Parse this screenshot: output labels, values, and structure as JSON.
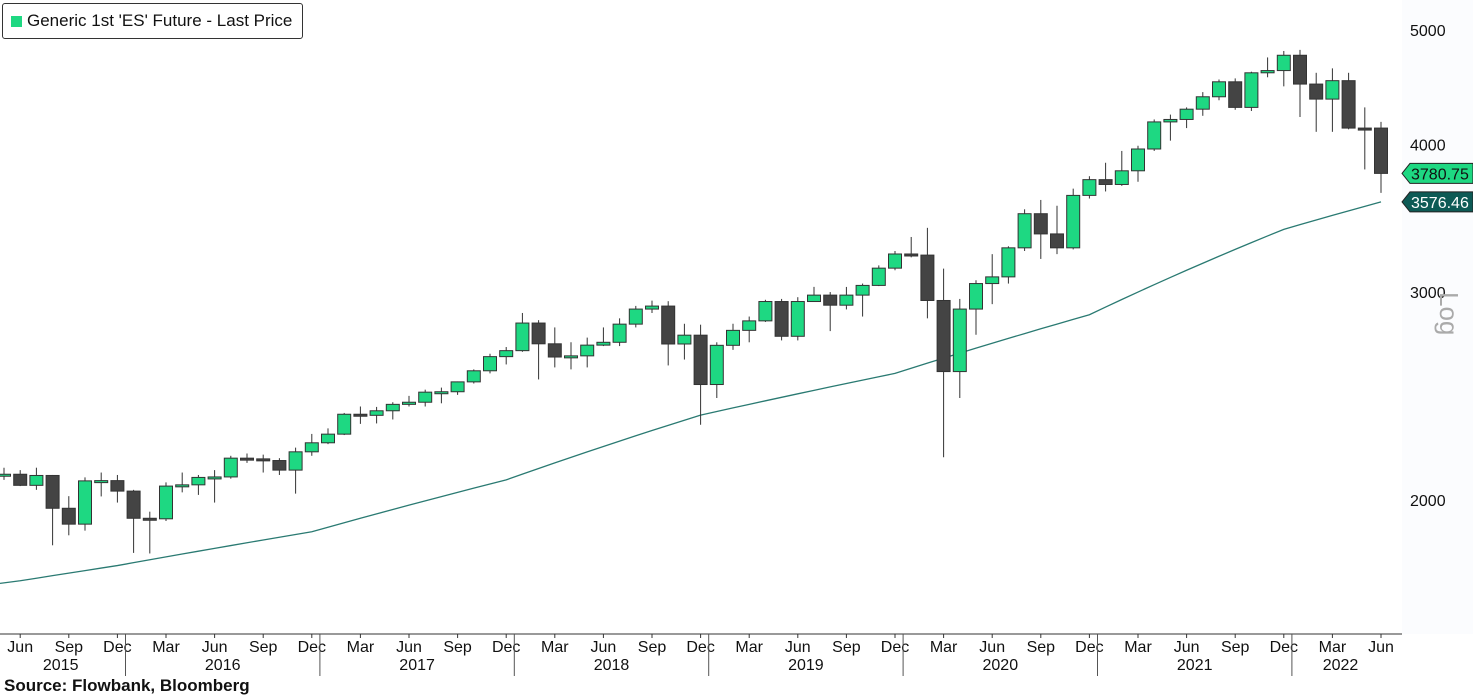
{
  "legend": {
    "label": "Generic 1st 'ES' Future - Last Price",
    "color": "#1ed882"
  },
  "source": "Source: Flowbank, Bloomberg",
  "chart_data": {
    "type": "candlestick",
    "title": "Generic 1st 'ES' Future - Last Price",
    "y_scale": "log",
    "y_scale_label": "Log",
    "ylim": [
      1600,
      5300
    ],
    "y_ticks": [
      "2000",
      "3000",
      "4000",
      "5000"
    ],
    "start_month": "2015-05",
    "up_color": "#1ed882",
    "down_color": "#444444",
    "ma_color": "#2a7a72",
    "last_price_label": "3780.75",
    "ma_last_label": "3576.46",
    "x_month_labels": [
      "Jun",
      "Sep",
      "Dec",
      "Mar",
      "Jun",
      "Sep",
      "Dec",
      "Mar",
      "Jun",
      "Sep",
      "Dec",
      "Mar",
      "Jun",
      "Sep",
      "Dec",
      "Mar",
      "Jun",
      "Sep",
      "Dec",
      "Mar",
      "Jun",
      "Sep",
      "Dec",
      "Mar",
      "Jun",
      "Sep",
      "Dec",
      "Mar",
      "Jun"
    ],
    "x_year_labels": [
      "2015",
      "2016",
      "2017",
      "2018",
      "2019",
      "2020",
      "2021",
      "2022"
    ],
    "ohlc": [
      [
        2100,
        2130,
        2080,
        2103
      ],
      [
        2103,
        2120,
        2055,
        2058
      ],
      [
        2058,
        2130,
        2040,
        2098
      ],
      [
        2098,
        2100,
        1831,
        1968
      ],
      [
        1968,
        2015,
        1867,
        1908
      ],
      [
        1908,
        2090,
        1884,
        2076
      ],
      [
        2076,
        2110,
        2014,
        2077
      ],
      [
        2077,
        2100,
        1990,
        2035
      ],
      [
        2035,
        2040,
        1804,
        1930
      ],
      [
        1930,
        1955,
        1802,
        1928
      ],
      [
        1928,
        2070,
        1920,
        2055
      ],
      [
        2055,
        2110,
        2030,
        2060
      ],
      [
        2060,
        2100,
        2020,
        2090
      ],
      [
        2090,
        2120,
        1990,
        2092
      ],
      [
        2092,
        2180,
        2085,
        2170
      ],
      [
        2170,
        2190,
        2150,
        2167
      ],
      [
        2167,
        2185,
        2110,
        2160
      ],
      [
        2160,
        2170,
        2100,
        2120
      ],
      [
        2120,
        2215,
        2025,
        2197
      ],
      [
        2197,
        2275,
        2180,
        2236
      ],
      [
        2236,
        2300,
        2230,
        2274
      ],
      [
        2274,
        2370,
        2270,
        2364
      ],
      [
        2364,
        2400,
        2320,
        2359
      ],
      [
        2359,
        2398,
        2322,
        2380
      ],
      [
        2380,
        2420,
        2340,
        2410
      ],
      [
        2410,
        2450,
        2400,
        2420
      ],
      [
        2420,
        2480,
        2400,
        2468
      ],
      [
        2468,
        2490,
        2415,
        2470
      ],
      [
        2470,
        2520,
        2455,
        2518
      ],
      [
        2518,
        2580,
        2510,
        2573
      ],
      [
        2573,
        2660,
        2560,
        2645
      ],
      [
        2645,
        2695,
        2605,
        2676
      ],
      [
        2676,
        2880,
        2670,
        2824
      ],
      [
        2824,
        2840,
        2530,
        2712
      ],
      [
        2712,
        2800,
        2590,
        2643
      ],
      [
        2643,
        2720,
        2580,
        2649
      ],
      [
        2649,
        2745,
        2590,
        2705
      ],
      [
        2705,
        2800,
        2700,
        2720
      ],
      [
        2720,
        2850,
        2700,
        2818
      ],
      [
        2818,
        2920,
        2800,
        2902
      ],
      [
        2902,
        2950,
        2880,
        2919
      ],
      [
        2919,
        2947,
        2600,
        2711
      ],
      [
        2711,
        2820,
        2630,
        2758
      ],
      [
        2758,
        2815,
        2316,
        2505
      ],
      [
        2505,
        2720,
        2440,
        2704
      ],
      [
        2704,
        2820,
        2680,
        2784
      ],
      [
        2784,
        2860,
        2720,
        2836
      ],
      [
        2836,
        2955,
        2830,
        2945
      ],
      [
        2945,
        2960,
        2730,
        2752
      ],
      [
        2752,
        2970,
        2730,
        2945
      ],
      [
        2945,
        3030,
        2950,
        2982
      ],
      [
        2982,
        3000,
        2780,
        2924
      ],
      [
        2924,
        3030,
        2900,
        2982
      ],
      [
        2982,
        3050,
        2860,
        3039
      ],
      [
        3039,
        3160,
        3035,
        3143
      ],
      [
        3143,
        3250,
        3130,
        3231
      ],
      [
        3231,
        3340,
        3210,
        3224
      ],
      [
        3224,
        3400,
        2850,
        2951
      ],
      [
        2951,
        3140,
        2174,
        2569
      ],
      [
        2569,
        2960,
        2440,
        2902
      ],
      [
        2902,
        3070,
        2760,
        3050
      ],
      [
        3050,
        3230,
        2930,
        3090
      ],
      [
        3090,
        3280,
        3050,
        3270
      ],
      [
        3270,
        3525,
        3250,
        3495
      ],
      [
        3495,
        3590,
        3200,
        3360
      ],
      [
        3360,
        3550,
        3230,
        3270
      ],
      [
        3270,
        3670,
        3260,
        3622
      ],
      [
        3622,
        3760,
        3600,
        3735
      ],
      [
        3735,
        3860,
        3650,
        3700
      ],
      [
        3700,
        3950,
        3690,
        3800
      ],
      [
        3800,
        3990,
        3720,
        3965
      ],
      [
        3965,
        4200,
        3950,
        4180
      ],
      [
        4180,
        4240,
        4030,
        4200
      ],
      [
        4200,
        4300,
        4130,
        4285
      ],
      [
        4285,
        4430,
        4230,
        4390
      ],
      [
        4390,
        4540,
        4360,
        4520
      ],
      [
        4520,
        4550,
        4280,
        4300
      ],
      [
        4300,
        4610,
        4270,
        4600
      ],
      [
        4600,
        4740,
        4560,
        4620
      ],
      [
        4620,
        4800,
        4480,
        4760
      ],
      [
        4760,
        4810,
        4220,
        4500
      ],
      [
        4500,
        4600,
        4100,
        4370
      ],
      [
        4370,
        4640,
        4100,
        4530
      ],
      [
        4530,
        4600,
        4120,
        4130
      ],
      [
        4130,
        4300,
        3810,
        4125
      ],
      [
        4130,
        4180,
        3640,
        3780.75
      ]
    ],
    "ma_keypoints": [
      [
        0,
        1700
      ],
      [
        7,
        1760
      ],
      [
        19,
        1880
      ],
      [
        31,
        2080
      ],
      [
        43,
        2360
      ],
      [
        55,
        2560
      ],
      [
        67,
        2870
      ],
      [
        79,
        3390
      ],
      [
        85,
        3576.46
      ]
    ]
  }
}
